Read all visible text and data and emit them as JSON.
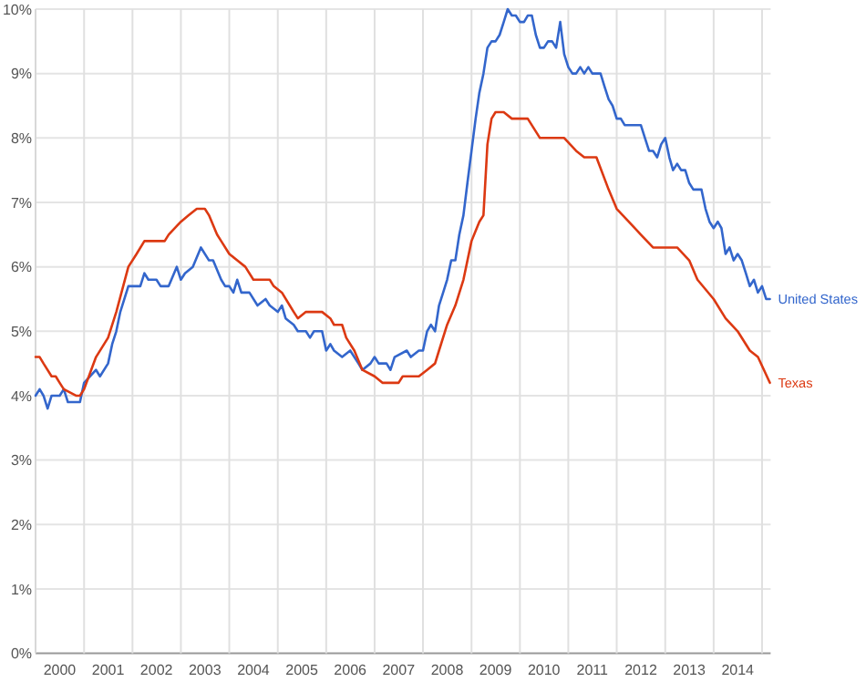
{
  "chart_data": {
    "type": "line",
    "legend": "right",
    "grid": true,
    "line_style": "solid",
    "marker": "none",
    "xlim": [
      "2000-01-01",
      "2015-03-07"
    ],
    "xticks": [
      {
        "value": "2000-07-01",
        "label": "2000"
      },
      {
        "value": "2001-01-01",
        "label": null
      },
      {
        "value": "2001-07-01",
        "label": "2001"
      },
      {
        "value": "2002-01-01",
        "label": null
      },
      {
        "value": "2002-07-01",
        "label": "2002"
      },
      {
        "value": "2003-01-01",
        "label": null
      },
      {
        "value": "2003-07-01",
        "label": "2003"
      },
      {
        "value": "2004-01-01",
        "label": null
      },
      {
        "value": "2004-07-01",
        "label": "2004"
      },
      {
        "value": "2005-01-01",
        "label": null
      },
      {
        "value": "2005-07-01",
        "label": "2005"
      },
      {
        "value": "2006-01-01",
        "label": null
      },
      {
        "value": "2006-07-01",
        "label": "2006"
      },
      {
        "value": "2007-01-01",
        "label": null
      },
      {
        "value": "2007-07-01",
        "label": "2007"
      },
      {
        "value": "2008-01-01",
        "label": null
      },
      {
        "value": "2008-07-01",
        "label": "2008"
      },
      {
        "value": "2009-01-01",
        "label": null
      },
      {
        "value": "2009-07-01",
        "label": "2009"
      },
      {
        "value": "2010-01-01",
        "label": null
      },
      {
        "value": "2010-07-01",
        "label": "2010"
      },
      {
        "value": "2011-01-01",
        "label": null
      },
      {
        "value": "2011-07-01",
        "label": "2011"
      },
      {
        "value": "2012-01-01",
        "label": null
      },
      {
        "value": "2012-07-01",
        "label": "2012"
      },
      {
        "value": "2013-01-01",
        "label": null
      },
      {
        "value": "2013-07-01",
        "label": "2013"
      },
      {
        "value": "2014-01-01",
        "label": null
      },
      {
        "value": "2014-07-01",
        "label": "2014"
      },
      {
        "value": "2015-01-01",
        "label": null
      }
    ],
    "ylim": [
      0,
      10
    ],
    "yticks": [
      {
        "value": 0,
        "label": "0%"
      },
      {
        "value": 1,
        "label": "1%"
      },
      {
        "value": 2,
        "label": "2%"
      },
      {
        "value": 3,
        "label": "3%"
      },
      {
        "value": 4,
        "label": "4%"
      },
      {
        "value": 5,
        "label": "5%"
      },
      {
        "value": 6,
        "label": "6%"
      },
      {
        "value": 7,
        "label": "7%"
      },
      {
        "value": 8,
        "label": "8%"
      },
      {
        "value": 9,
        "label": "9%"
      },
      {
        "value": 10,
        "label": "10%"
      }
    ],
    "series": [
      {
        "name": "United States",
        "color": "#3366cc",
        "x": [
          "2000-01",
          "2000-02",
          "2000-03",
          "2000-04",
          "2000-05",
          "2000-07",
          "2000-08",
          "2000-09",
          "2000-12",
          "2001-01",
          "2001-04",
          "2001-05",
          "2001-07",
          "2001-08",
          "2001-09",
          "2001-10",
          "2001-12",
          "2002-03",
          "2002-04",
          "2002-05",
          "2002-07",
          "2002-08",
          "2002-10",
          "2002-12",
          "2003-01",
          "2003-02",
          "2003-04",
          "2003-06",
          "2003-08",
          "2003-09",
          "2003-11",
          "2003-12",
          "2004-01",
          "2004-02",
          "2004-03",
          "2004-04",
          "2004-06",
          "2004-08",
          "2004-10",
          "2004-11",
          "2005-01",
          "2005-02",
          "2005-03",
          "2005-05",
          "2005-06",
          "2005-08",
          "2005-09",
          "2005-10",
          "2005-12",
          "2006-01",
          "2006-02",
          "2006-03",
          "2006-05",
          "2006-07",
          "2006-09",
          "2006-10",
          "2006-12",
          "2007-01",
          "2007-02",
          "2007-04",
          "2007-05",
          "2007-06",
          "2007-09",
          "2007-10",
          "2007-12",
          "2008-01",
          "2008-02",
          "2008-03",
          "2008-04",
          "2008-05",
          "2008-06",
          "2008-07",
          "2008-08",
          "2008-09",
          "2008-10",
          "2008-11",
          "2008-12",
          "2009-01",
          "2009-02",
          "2009-03",
          "2009-04",
          "2009-05",
          "2009-06",
          "2009-07",
          "2009-08",
          "2009-09",
          "2009-10",
          "2009-11",
          "2009-12",
          "2010-01",
          "2010-02",
          "2010-03",
          "2010-04",
          "2010-05",
          "2010-06",
          "2010-07",
          "2010-08",
          "2010-09",
          "2010-10",
          "2010-11",
          "2010-12",
          "2011-01",
          "2011-02",
          "2011-03",
          "2011-04",
          "2011-05",
          "2011-06",
          "2011-07",
          "2011-08",
          "2011-09",
          "2011-10",
          "2011-11",
          "2011-12",
          "2012-01",
          "2012-02",
          "2012-03",
          "2012-04",
          "2012-05",
          "2012-06",
          "2012-07",
          "2012-08",
          "2012-09",
          "2012-10",
          "2012-11",
          "2012-12",
          "2013-01",
          "2013-02",
          "2013-03",
          "2013-04",
          "2013-05",
          "2013-06",
          "2013-07",
          "2013-08",
          "2013-09",
          "2013-10",
          "2013-11",
          "2013-12",
          "2014-01",
          "2014-02",
          "2014-03",
          "2014-04",
          "2014-05",
          "2014-06",
          "2014-07",
          "2014-08",
          "2014-09",
          "2014-10",
          "2014-11",
          "2014-12",
          "2015-01",
          "2015-02",
          "2015-03"
        ],
        "values": [
          4.0,
          4.1,
          4.0,
          3.8,
          4.0,
          4.0,
          4.1,
          3.9,
          3.9,
          4.2,
          4.4,
          4.3,
          4.5,
          4.8,
          5.0,
          5.3,
          5.7,
          5.7,
          5.9,
          5.8,
          5.8,
          5.7,
          5.7,
          6.0,
          5.8,
          5.9,
          6.0,
          6.3,
          6.1,
          6.1,
          5.8,
          5.7,
          5.7,
          5.6,
          5.8,
          5.6,
          5.6,
          5.4,
          5.5,
          5.4,
          5.3,
          5.4,
          5.2,
          5.1,
          5.0,
          5.0,
          4.9,
          5.0,
          5.0,
          4.7,
          4.8,
          4.7,
          4.6,
          4.7,
          4.5,
          4.4,
          4.5,
          4.6,
          4.5,
          4.5,
          4.4,
          4.6,
          4.7,
          4.6,
          4.7,
          4.7,
          5.0,
          5.1,
          5.0,
          5.4,
          5.6,
          5.8,
          6.1,
          6.1,
          6.5,
          6.8,
          7.3,
          7.8,
          8.3,
          8.7,
          9.0,
          9.4,
          9.5,
          9.5,
          9.6,
          9.8,
          10.0,
          9.9,
          9.9,
          9.8,
          9.8,
          9.9,
          9.9,
          9.6,
          9.4,
          9.4,
          9.5,
          9.5,
          9.4,
          9.8,
          9.3,
          9.1,
          9.0,
          9.0,
          9.1,
          9.0,
          9.1,
          9.0,
          9.0,
          9.0,
          8.8,
          8.6,
          8.5,
          8.3,
          8.3,
          8.2,
          8.2,
          8.2,
          8.2,
          8.2,
          8.0,
          7.8,
          7.8,
          7.7,
          7.9,
          8.0,
          7.7,
          7.5,
          7.6,
          7.5,
          7.5,
          7.3,
          7.2,
          7.2,
          7.2,
          6.9,
          6.7,
          6.6,
          6.7,
          6.6,
          6.2,
          6.3,
          6.1,
          6.2,
          6.1,
          5.9,
          5.7,
          5.8,
          5.6,
          5.7,
          5.5,
          5.5
        ]
      },
      {
        "name": "Texas",
        "color": "#dc3912",
        "x": [
          "2000-01",
          "2000-02",
          "2000-03",
          "2000-05",
          "2000-06",
          "2000-07",
          "2000-08",
          "2000-11",
          "2000-12",
          "2001-01",
          "2001-04",
          "2001-07",
          "2001-09",
          "2001-12",
          "2002-02",
          "2002-04",
          "2002-09",
          "2002-10",
          "2003-01",
          "2003-03",
          "2003-05",
          "2003-07",
          "2003-08",
          "2003-10",
          "2003-11",
          "2004-01",
          "2004-03",
          "2004-05",
          "2004-07",
          "2004-11",
          "2004-12",
          "2005-02",
          "2005-04",
          "2005-05",
          "2005-06",
          "2005-08",
          "2005-12",
          "2006-02",
          "2006-03",
          "2006-05",
          "2006-06",
          "2006-08",
          "2006-10",
          "2007-01",
          "2007-03",
          "2007-07",
          "2007-08",
          "2007-12",
          "2008-02",
          "2008-04",
          "2008-05",
          "2008-07",
          "2008-09",
          "2008-11",
          "2009-01",
          "2009-03",
          "2009-04",
          "2009-05",
          "2009-06",
          "2009-07",
          "2009-09",
          "2009-11",
          "2010-03",
          "2010-06",
          "2010-12",
          "2011-03",
          "2011-05",
          "2011-08",
          "2011-11",
          "2012-01",
          "2012-04",
          "2012-07",
          "2012-10",
          "2013-04",
          "2013-07",
          "2013-09",
          "2014-01",
          "2014-04",
          "2014-07",
          "2014-10",
          "2014-12",
          "2015-03"
        ],
        "values": [
          4.6,
          4.6,
          4.5,
          4.3,
          4.3,
          4.2,
          4.1,
          4.0,
          4.0,
          4.1,
          4.6,
          4.9,
          5.3,
          6.0,
          6.2,
          6.4,
          6.4,
          6.5,
          6.7,
          6.8,
          6.9,
          6.9,
          6.8,
          6.5,
          6.4,
          6.2,
          6.1,
          6.0,
          5.8,
          5.8,
          5.7,
          5.6,
          5.4,
          5.3,
          5.2,
          5.3,
          5.3,
          5.2,
          5.1,
          5.1,
          4.9,
          4.7,
          4.4,
          4.3,
          4.2,
          4.2,
          4.3,
          4.3,
          4.4,
          4.5,
          4.7,
          5.1,
          5.4,
          5.8,
          6.4,
          6.7,
          6.8,
          7.9,
          8.3,
          8.4,
          8.4,
          8.3,
          8.3,
          8.0,
          8.0,
          7.8,
          7.7,
          7.7,
          7.2,
          6.9,
          6.7,
          6.5,
          6.3,
          6.3,
          6.1,
          5.8,
          5.5,
          5.2,
          5.0,
          4.7,
          4.6,
          4.2
        ]
      }
    ]
  }
}
